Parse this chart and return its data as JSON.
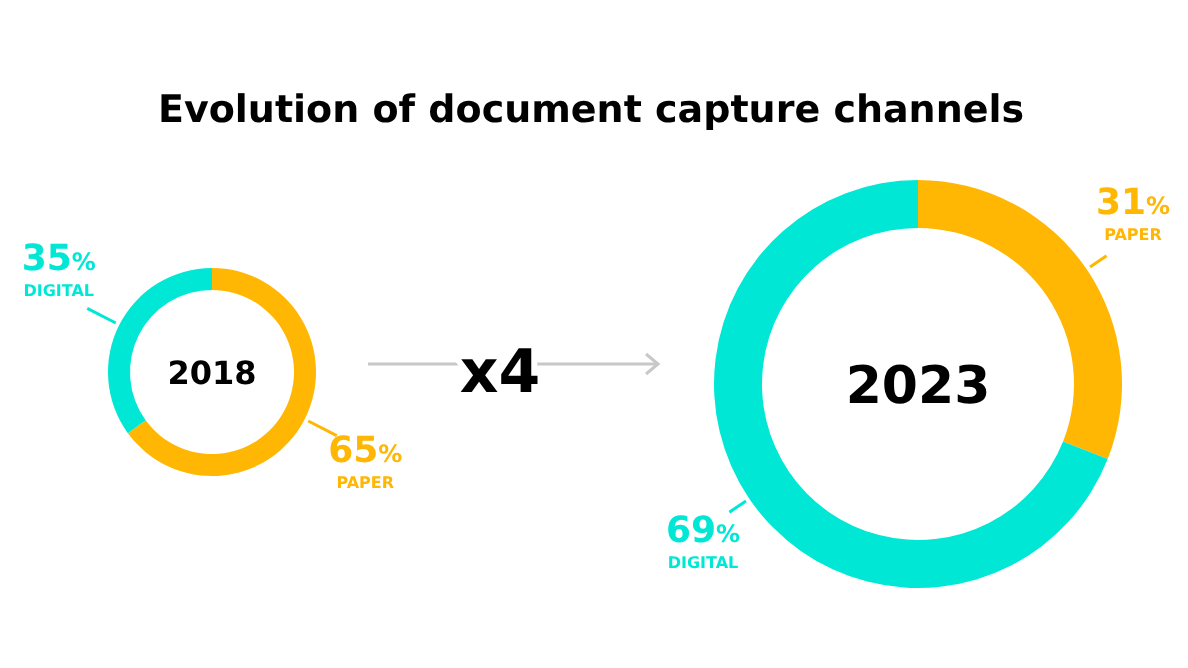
{
  "chart_data": [
    {
      "type": "donut",
      "title": "Evolution of document capture channels",
      "subtitle": "2018",
      "categories": [
        "PAPER",
        "DIGITAL"
      ],
      "values": [
        65,
        35
      ],
      "value_labels": [
        "65%",
        "35%"
      ],
      "colors": [
        "#ffb703",
        "#00e8d5"
      ],
      "annotations": [
        "x4"
      ]
    },
    {
      "type": "donut",
      "subtitle": "2023",
      "categories": [
        "PAPER",
        "DIGITAL"
      ],
      "values": [
        31,
        69
      ],
      "value_labels": [
        "31%",
        "69%"
      ],
      "colors": [
        "#ffb703",
        "#00e8d5"
      ]
    }
  ]
}
